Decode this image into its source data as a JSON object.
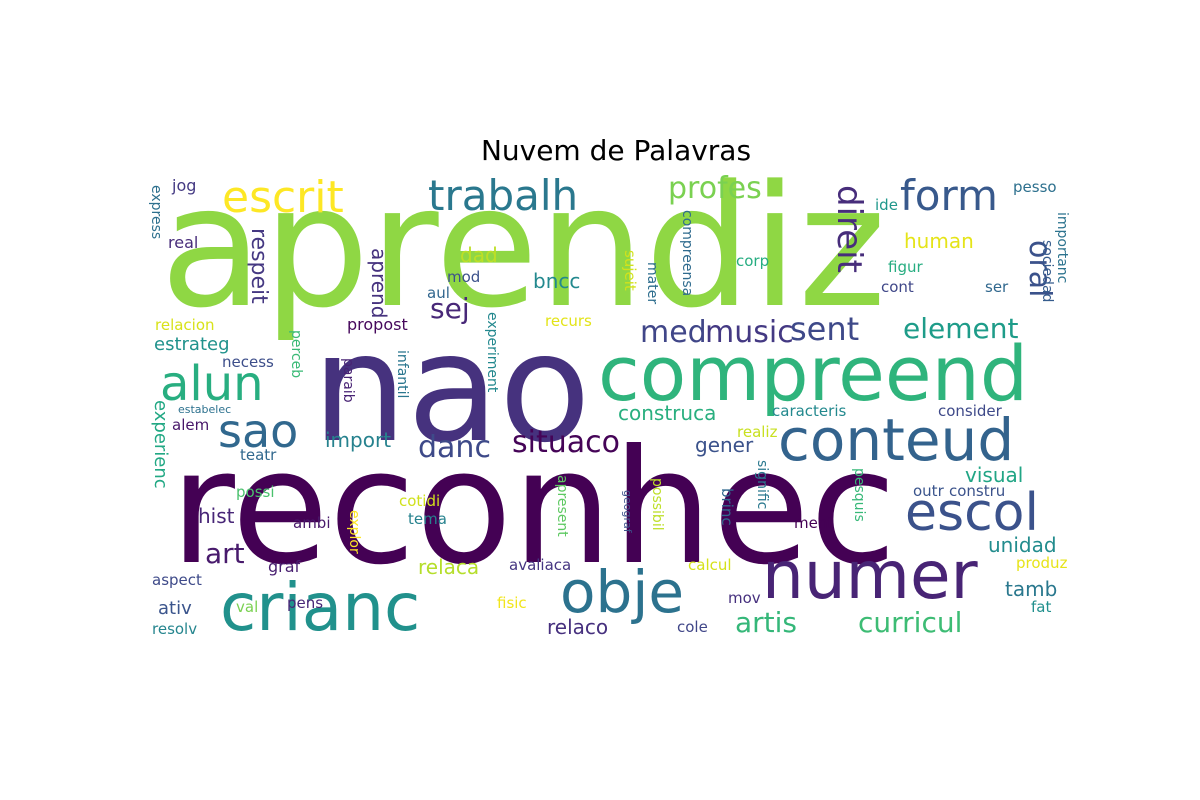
{
  "title": "Nuvem de Palavras",
  "chart_data": {
    "type": "wordcloud",
    "title": "Nuvem de Palavras",
    "colormap": "viridis",
    "background": "#ffffff",
    "words": [
      {
        "text": "aprendiz",
        "weight": 100,
        "color": "#8fd744"
      },
      {
        "text": "nao",
        "weight": 95,
        "color": "#46327e"
      },
      {
        "text": "reconhec",
        "weight": 92,
        "color": "#440154"
      },
      {
        "text": "compreend",
        "weight": 60,
        "color": "#2fb47c"
      },
      {
        "text": "numer",
        "weight": 52,
        "color": "#482475"
      },
      {
        "text": "crianc",
        "weight": 48,
        "color": "#21918c"
      },
      {
        "text": "conteud",
        "weight": 46,
        "color": "#33638d"
      },
      {
        "text": "obje",
        "weight": 44,
        "color": "#2c728e"
      },
      {
        "text": "escol",
        "weight": 40,
        "color": "#3b528b"
      },
      {
        "text": "alun",
        "weight": 38,
        "color": "#28ae80"
      },
      {
        "text": "sao",
        "weight": 36,
        "color": "#31688e"
      },
      {
        "text": "escrit",
        "weight": 34,
        "color": "#fde725"
      },
      {
        "text": "trabalh",
        "weight": 32,
        "color": "#2a788e"
      },
      {
        "text": "form",
        "weight": 32,
        "color": "#38598c"
      },
      {
        "text": "direit",
        "weight": 28,
        "color": "#472d7b"
      },
      {
        "text": "sent",
        "weight": 26,
        "color": "#3e4989"
      },
      {
        "text": "profes",
        "weight": 24,
        "color": "#7ad151"
      },
      {
        "text": "med",
        "weight": 24,
        "color": "#404688"
      },
      {
        "text": "music",
        "weight": 24,
        "color": "#443983"
      },
      {
        "text": "situaco",
        "weight": 24,
        "color": "#450457"
      },
      {
        "text": "oral",
        "weight": 24,
        "color": "#3b528b"
      },
      {
        "text": "element",
        "weight": 22,
        "color": "#1e9c89"
      },
      {
        "text": "art",
        "weight": 22,
        "color": "#481a6c"
      },
      {
        "text": "danc",
        "weight": 24,
        "color": "#3e4a89"
      },
      {
        "text": "sej",
        "weight": 22,
        "color": "#482878"
      },
      {
        "text": "artis",
        "weight": 22,
        "color": "#35b779"
      },
      {
        "text": "curricul",
        "weight": 22,
        "color": "#3dbc74"
      },
      {
        "text": "respeit",
        "weight": 18,
        "color": "#453882"
      },
      {
        "text": "aprend",
        "weight": 18,
        "color": "#46327e"
      },
      {
        "text": "construca",
        "weight": 16,
        "color": "#29af7f"
      },
      {
        "text": "human",
        "weight": 16,
        "color": "#e5e419"
      },
      {
        "text": "dad",
        "weight": 16,
        "color": "#bddf26"
      },
      {
        "text": "bncc",
        "weight": 16,
        "color": "#23898e"
      },
      {
        "text": "import",
        "weight": 16,
        "color": "#26828e"
      },
      {
        "text": "hist",
        "weight": 16,
        "color": "#482677"
      },
      {
        "text": "relaca",
        "weight": 16,
        "color": "#b5de2b"
      },
      {
        "text": "unidad",
        "weight": 16,
        "color": "#228c8d"
      },
      {
        "text": "visual",
        "weight": 16,
        "color": "#21a585"
      },
      {
        "text": "gener",
        "weight": 16,
        "color": "#3b528b"
      },
      {
        "text": "tamb",
        "weight": 16,
        "color": "#2a788e"
      },
      {
        "text": "relaco",
        "weight": 16,
        "color": "#46307e"
      },
      {
        "text": "estrateg",
        "weight": 14,
        "color": "#20928c"
      },
      {
        "text": "experienc",
        "weight": 14,
        "color": "#22a884"
      },
      {
        "text": "ativ",
        "weight": 14,
        "color": "#3a548c"
      },
      {
        "text": "jog",
        "weight": 10,
        "color": "#443a83"
      },
      {
        "text": "express",
        "weight": 10,
        "color": "#2d708e"
      },
      {
        "text": "real",
        "weight": 10,
        "color": "#472c7a"
      },
      {
        "text": "mod",
        "weight": 10,
        "color": "#3b518b"
      },
      {
        "text": "aul",
        "weight": 10,
        "color": "#31668e"
      },
      {
        "text": "sujeit",
        "weight": 10,
        "color": "#d2e21b"
      },
      {
        "text": "mater",
        "weight": 10,
        "color": "#2e6e8e"
      },
      {
        "text": "compreensa",
        "weight": 10,
        "color": "#2f6b8e"
      },
      {
        "text": "corp",
        "weight": 10,
        "color": "#26ad81"
      },
      {
        "text": "figur",
        "weight": 10,
        "color": "#27ad81"
      },
      {
        "text": "cont",
        "weight": 10,
        "color": "#3f4788"
      },
      {
        "text": "ser",
        "weight": 10,
        "color": "#31688e"
      },
      {
        "text": "sociedad",
        "weight": 10,
        "color": "#365c8d"
      },
      {
        "text": "importanc",
        "weight": 10,
        "color": "#2c738e"
      },
      {
        "text": "pesso",
        "weight": 10,
        "color": "#2d708e"
      },
      {
        "text": "ide",
        "weight": 10,
        "color": "#1f978b"
      },
      {
        "text": "relacion",
        "weight": 10,
        "color": "#d8e219"
      },
      {
        "text": "propost",
        "weight": 10,
        "color": "#46085c"
      },
      {
        "text": "recurs",
        "weight": 10,
        "color": "#e3e418"
      },
      {
        "text": "necess",
        "weight": 10,
        "color": "#3d4e8a"
      },
      {
        "text": "perceb",
        "weight": 10,
        "color": "#3aba76"
      },
      {
        "text": "paraib",
        "weight": 10,
        "color": "#482374"
      },
      {
        "text": "infantil",
        "weight": 10,
        "color": "#2a768e"
      },
      {
        "text": "experiment",
        "weight": 10,
        "color": "#23888e"
      },
      {
        "text": "estabelec",
        "weight": 7,
        "color": "#2c718e"
      },
      {
        "text": "alem",
        "weight": 10,
        "color": "#481769"
      },
      {
        "text": "teatr",
        "weight": 10,
        "color": "#31688e"
      },
      {
        "text": "caracteris",
        "weight": 10,
        "color": "#23898e"
      },
      {
        "text": "consider",
        "weight": 10,
        "color": "#3e4989"
      },
      {
        "text": "realiz",
        "weight": 10,
        "color": "#c8e020"
      },
      {
        "text": "possi",
        "weight": 10,
        "color": "#4ac16d"
      },
      {
        "text": "ambi",
        "weight": 10,
        "color": "#48196b"
      },
      {
        "text": "explor",
        "weight": 10,
        "color": "#fde725"
      },
      {
        "text": "cotidi",
        "weight": 10,
        "color": "#d0e11c"
      },
      {
        "text": "tema",
        "weight": 10,
        "color": "#26828e"
      },
      {
        "text": "apresent",
        "weight": 10,
        "color": "#5ec962"
      },
      {
        "text": "possibil",
        "weight": 10,
        "color": "#bddf26"
      },
      {
        "text": "geograf",
        "weight": 7,
        "color": "#3b528b"
      },
      {
        "text": "brinc",
        "weight": 10,
        "color": "#31688e"
      },
      {
        "text": "signific",
        "weight": 10,
        "color": "#2a788e"
      },
      {
        "text": "ment",
        "weight": 10,
        "color": "#440154"
      },
      {
        "text": "pesquis",
        "weight": 10,
        "color": "#37b878"
      },
      {
        "text": "outr",
        "weight": 10,
        "color": "#3a548c"
      },
      {
        "text": "constru",
        "weight": 10,
        "color": "#3b528b"
      },
      {
        "text": "graf",
        "weight": 10,
        "color": "#481f70"
      },
      {
        "text": "avaliaca",
        "weight": 10,
        "color": "#453581"
      },
      {
        "text": "calcul",
        "weight": 10,
        "color": "#d5e21a"
      },
      {
        "text": "produz",
        "weight": 10,
        "color": "#e7e419"
      },
      {
        "text": "aspect",
        "weight": 10,
        "color": "#3e4a89"
      },
      {
        "text": "val",
        "weight": 10,
        "color": "#7ad151"
      },
      {
        "text": "pens",
        "weight": 10,
        "color": "#482677"
      },
      {
        "text": "fisic",
        "weight": 10,
        "color": "#f1e51d"
      },
      {
        "text": "mov",
        "weight": 10,
        "color": "#46307e"
      },
      {
        "text": "fat",
        "weight": 10,
        "color": "#21908d"
      },
      {
        "text": "resolv",
        "weight": 10,
        "color": "#25858e"
      },
      {
        "text": "cole",
        "weight": 10,
        "color": "#404688"
      }
    ]
  }
}
